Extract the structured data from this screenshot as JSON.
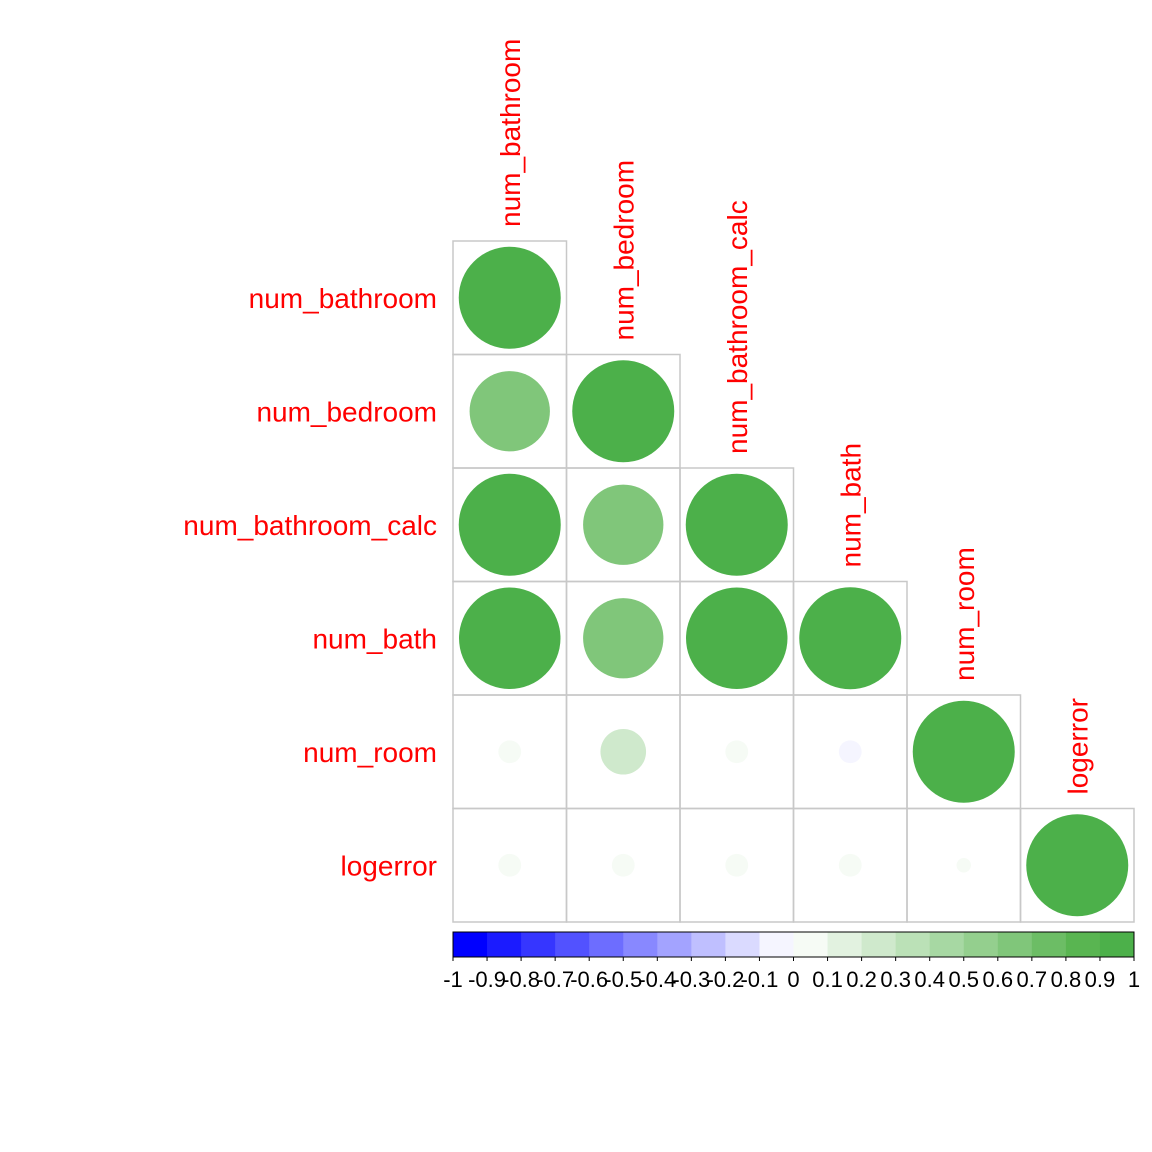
{
  "chart_data": {
    "type": "heatmap",
    "title": "",
    "variables": [
      "num_bathroom",
      "num_bedroom",
      "num_bathroom_calc",
      "num_bath",
      "num_room",
      "logerror"
    ],
    "matrix_shape": "lower-triangle",
    "glyph": "circle",
    "correlations": [
      [
        1.0
      ],
      [
        0.62,
        1.0
      ],
      [
        1.0,
        0.62,
        1.0
      ],
      [
        0.99,
        0.62,
        0.99,
        1.0
      ],
      [
        0.05,
        0.2,
        0.05,
        -0.05,
        1.0
      ],
      [
        0.05,
        0.05,
        0.05,
        0.05,
        0.02,
        1.0
      ]
    ],
    "colorbar": {
      "range": [
        -1,
        1
      ],
      "ticks": [
        "-1",
        "-0.9",
        "-0.8",
        "-0.7",
        "-0.6",
        "-0.5",
        "-0.4",
        "-0.3",
        "-0.2",
        "-0.1",
        "0",
        "0.1",
        "0.2",
        "0.3",
        "0.4",
        "0.5",
        "0.6",
        "0.7",
        "0.8",
        "0.9",
        "1"
      ],
      "colors": [
        "#0000ff",
        "#1b1bff",
        "#3636ff",
        "#5252ff",
        "#6d6dff",
        "#8888ff",
        "#a3a3ff",
        "#bfbfff",
        "#dadaff",
        "#f5f5ff",
        "#f6fbf5",
        "#e2f2e0",
        "#cfe9cc",
        "#bbe1b7",
        "#a7d8a3",
        "#94cf8e",
        "#80c67a",
        "#6cbd65",
        "#59b551",
        "#4cb04a"
      ]
    },
    "colors": {
      "label": "#ff0000",
      "grid": "#c8c8c8",
      "positive_max": "#4cb04a",
      "negative_max": "#0000ff"
    }
  }
}
